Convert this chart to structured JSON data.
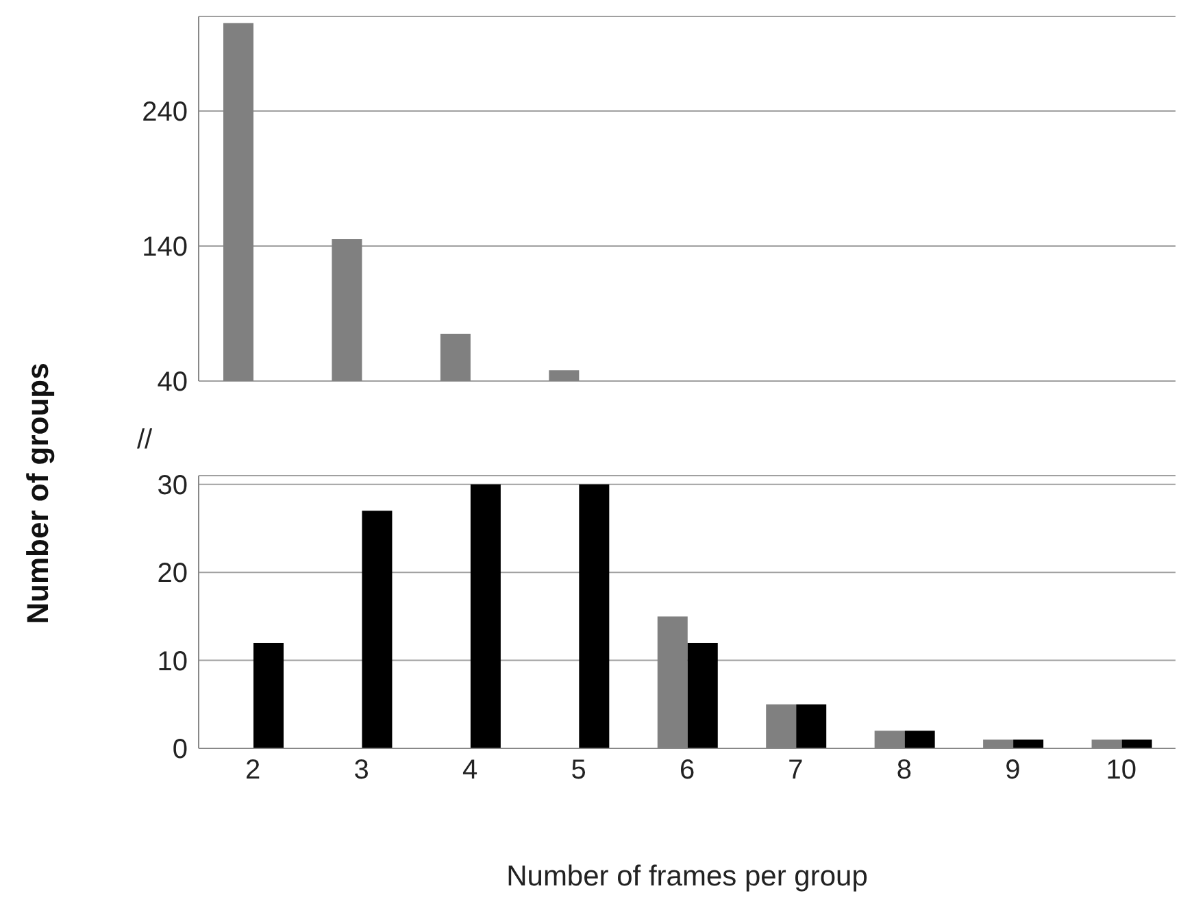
{
  "chart_data": [
    {
      "type": "bar",
      "categories": [
        "2",
        "3",
        "4",
        "5",
        "6",
        "7",
        "8",
        "9",
        "10"
      ],
      "series": [
        {
          "color": "#808080",
          "values": [
            305,
            145,
            75,
            48,
            null,
            null,
            null,
            null,
            null
          ]
        },
        {
          "color": "#000000",
          "values": [
            null,
            null,
            null,
            null,
            null,
            null,
            null,
            null,
            null
          ]
        }
      ],
      "ylim": [
        40,
        310
      ],
      "yticks": [
        40,
        140,
        240
      ],
      "grid": "y",
      "tick_labels": "y",
      "ylabel": "Number of groups"
    },
    {
      "type": "bar",
      "categories": [
        "2",
        "3",
        "4",
        "5",
        "6",
        "7",
        "8",
        "9",
        "10"
      ],
      "series": [
        {
          "color": "#808080",
          "values": [
            null,
            null,
            null,
            null,
            15,
            5,
            2,
            1,
            1
          ]
        },
        {
          "color": "#000000",
          "values": [
            12,
            27,
            30,
            30,
            12,
            5,
            2,
            1,
            1
          ]
        }
      ],
      "ylim": [
        0,
        31
      ],
      "yticks": [
        0,
        10,
        20,
        30
      ],
      "grid": "y",
      "xlabel": "Number of frames per group",
      "annotations": [
        "//"
      ]
    }
  ]
}
